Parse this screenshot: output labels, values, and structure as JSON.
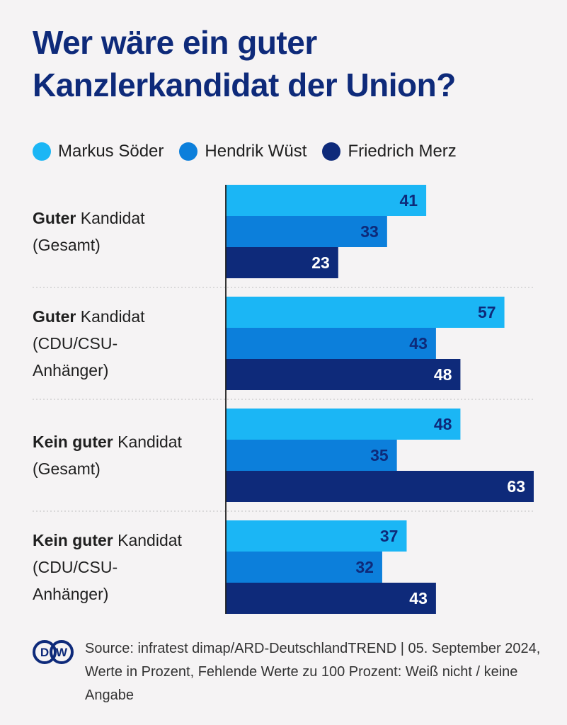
{
  "title": "Wer wäre ein guter Kanzlerkandidat der Union?",
  "legend": [
    {
      "name": "Markus Söder",
      "color": "#1bb6f5"
    },
    {
      "name": "Hendrik Wüst",
      "color": "#0c7fdb"
    },
    {
      "name": "Friedrich Merz",
      "color": "#0e2a7a"
    }
  ],
  "chart_data": {
    "type": "bar",
    "orientation": "horizontal",
    "categories": [
      [
        {
          "text": "Guter",
          "bold": true
        },
        {
          "text": " Kandidat",
          "bold": false
        },
        {
          "text": "\n(Gesamt)",
          "bold": false
        }
      ],
      [
        {
          "text": "Guter",
          "bold": true
        },
        {
          "text": " Kandidat",
          "bold": false
        },
        {
          "text": "\n(CDU/CSU-\nAnhänger)",
          "bold": false
        }
      ],
      [
        {
          "text": "Kein guter",
          "bold": true
        },
        {
          "text": " Kandidat",
          "bold": false
        },
        {
          "text": "\n(Gesamt)",
          "bold": false
        }
      ],
      [
        {
          "text": "Kein guter",
          "bold": true
        },
        {
          "text": " Kandidat",
          "bold": false
        },
        {
          "text": "\n(CDU/CSU-\nAnhänger)",
          "bold": false
        }
      ]
    ],
    "series": [
      {
        "name": "Markus Söder",
        "values": [
          41,
          57,
          48,
          37
        ],
        "color": "#1bb6f5",
        "label_color": "#0e2a7a"
      },
      {
        "name": "Hendrik Wüst",
        "values": [
          33,
          43,
          35,
          32
        ],
        "color": "#0c7fdb",
        "label_color": "#0e2a7a"
      },
      {
        "name": "Friedrich Merz",
        "values": [
          23,
          48,
          63,
          43
        ],
        "color": "#0e2a7a",
        "label_color": "#ffffff"
      }
    ],
    "xlim": [
      0,
      63
    ],
    "grid": false,
    "legend_position": "top"
  },
  "source": "Source: infratest dimap/ARD-DeutschlandTREND | 05. September 2024, Werte in Prozent, Fehlende Werte zu 100 Prozent: Weiß nicht / keine Angabe",
  "logo": {
    "text": "DW",
    "color": "#0e2a7a"
  }
}
